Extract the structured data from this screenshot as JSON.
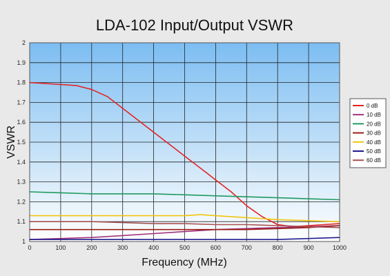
{
  "chart_data": {
    "type": "line",
    "title": "LDA-102 Input/Output VSWR",
    "xlabel": "Frequency (MHz)",
    "ylabel": "VSWR",
    "xlim": [
      0,
      1000
    ],
    "ylim": [
      1,
      2
    ],
    "x_ticks": [
      "0",
      "100",
      "200",
      "300",
      "400",
      "500",
      "600",
      "700",
      "800",
      "900",
      "1000"
    ],
    "y_ticks": [
      "1",
      "1.1",
      "1.2",
      "1.3",
      "1.4",
      "1.5",
      "1.6",
      "1.7",
      "1.8",
      "1.9",
      "2"
    ],
    "grid": true,
    "legend_position": "right",
    "series": [
      {
        "name": "0 dB",
        "color": "#e32222",
        "points": [
          [
            0,
            1.8
          ],
          [
            100,
            1.79
          ],
          [
            150,
            1.785
          ],
          [
            200,
            1.765
          ],
          [
            250,
            1.73
          ],
          [
            300,
            1.67
          ],
          [
            350,
            1.61
          ],
          [
            400,
            1.55
          ],
          [
            450,
            1.49
          ],
          [
            500,
            1.43
          ],
          [
            550,
            1.37
          ],
          [
            600,
            1.31
          ],
          [
            650,
            1.25
          ],
          [
            700,
            1.18
          ],
          [
            750,
            1.125
          ],
          [
            800,
            1.085
          ],
          [
            850,
            1.075
          ],
          [
            900,
            1.08
          ],
          [
            950,
            1.085
          ],
          [
            1000,
            1.09
          ]
        ]
      },
      {
        "name": "10 dB",
        "color": "#a0307a",
        "points": [
          [
            0,
            1.01
          ],
          [
            100,
            1.015
          ],
          [
            200,
            1.02
          ],
          [
            300,
            1.03
          ],
          [
            400,
            1.04
          ],
          [
            500,
            1.05
          ],
          [
            600,
            1.06
          ],
          [
            700,
            1.065
          ],
          [
            800,
            1.07
          ],
          [
            900,
            1.075
          ],
          [
            1000,
            1.08
          ]
        ]
      },
      {
        "name": "20 dB",
        "color": "#1f9a60",
        "points": [
          [
            0,
            1.25
          ],
          [
            100,
            1.245
          ],
          [
            200,
            1.24
          ],
          [
            300,
            1.24
          ],
          [
            400,
            1.24
          ],
          [
            500,
            1.235
          ],
          [
            600,
            1.23
          ],
          [
            700,
            1.225
          ],
          [
            800,
            1.22
          ],
          [
            900,
            1.215
          ],
          [
            1000,
            1.21
          ]
        ]
      },
      {
        "name": "30 dB",
        "color": "#9b1c14",
        "points": [
          [
            0,
            1.06
          ],
          [
            100,
            1.06
          ],
          [
            200,
            1.06
          ],
          [
            300,
            1.06
          ],
          [
            400,
            1.06
          ],
          [
            500,
            1.06
          ],
          [
            600,
            1.06
          ],
          [
            700,
            1.06
          ],
          [
            800,
            1.065
          ],
          [
            900,
            1.07
          ],
          [
            1000,
            1.08
          ]
        ]
      },
      {
        "name": "40 dB",
        "color": "#f2c40c",
        "points": [
          [
            0,
            1.13
          ],
          [
            100,
            1.13
          ],
          [
            200,
            1.13
          ],
          [
            300,
            1.13
          ],
          [
            400,
            1.13
          ],
          [
            500,
            1.13
          ],
          [
            550,
            1.135
          ],
          [
            600,
            1.13
          ],
          [
            700,
            1.12
          ],
          [
            800,
            1.11
          ],
          [
            900,
            1.105
          ],
          [
            1000,
            1.1
          ]
        ]
      },
      {
        "name": "50 dB",
        "color": "#1c1a8e",
        "points": [
          [
            0,
            1.01
          ],
          [
            200,
            1.01
          ],
          [
            400,
            1.01
          ],
          [
            600,
            1.01
          ],
          [
            800,
            1.01
          ],
          [
            900,
            1.015
          ],
          [
            1000,
            1.02
          ]
        ]
      },
      {
        "name": "60 dB",
        "color": "#a85050",
        "points": [
          [
            0,
            1.1
          ],
          [
            100,
            1.1
          ],
          [
            200,
            1.1
          ],
          [
            300,
            1.095
          ],
          [
            400,
            1.09
          ],
          [
            500,
            1.09
          ],
          [
            600,
            1.085
          ],
          [
            700,
            1.085
          ],
          [
            800,
            1.08
          ],
          [
            900,
            1.075
          ],
          [
            1000,
            1.07
          ]
        ]
      }
    ]
  }
}
